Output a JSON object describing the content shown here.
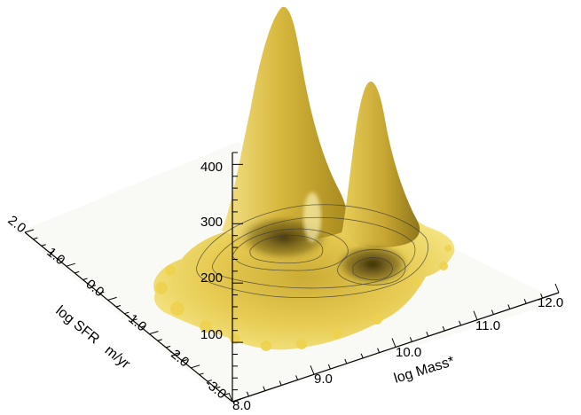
{
  "chart_data": {
    "type": "surface3d",
    "title": "",
    "xlabel": "log Mass*",
    "ylabel": "log SFR   m/yr",
    "zlabel": "",
    "x_ticks": [
      "8.0",
      "9.0",
      "10.0",
      "11.0",
      "12.0"
    ],
    "y_ticks": [
      "-3.0",
      "-2.0",
      "-1.0",
      "0.0",
      "1.0",
      "2.0"
    ],
    "z_ticks": [
      "100",
      "200",
      "300",
      "400"
    ],
    "xlim": [
      8.0,
      12.0
    ],
    "ylim": [
      -3.0,
      2.0
    ],
    "zlim": [
      0,
      420
    ],
    "peaks": [
      {
        "name": "",
        "log_mass": 9.9,
        "log_sfr": 0.3,
        "height": 410
      },
      {
        "name": "",
        "log_mass": 10.8,
        "log_sfr": -0.6,
        "height": 300
      }
    ],
    "surface_color": "#e8c84a",
    "shadow_color": "#6b5a10",
    "contours": true
  }
}
